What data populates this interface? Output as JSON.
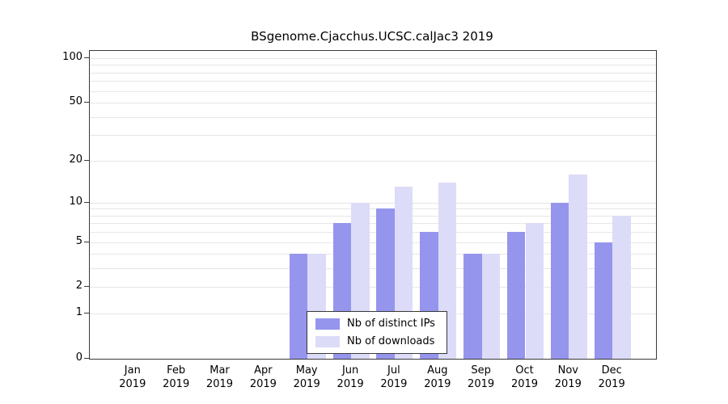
{
  "chart_data": {
    "type": "bar",
    "title": "BSgenome.Cjacchus.UCSC.calJac3 2019",
    "categories": [
      "Jan",
      "Feb",
      "Mar",
      "Apr",
      "May",
      "Jun",
      "Jul",
      "Aug",
      "Sep",
      "Oct",
      "Nov",
      "Dec"
    ],
    "x_year": "2019",
    "series": [
      {
        "name": "Nb of distinct IPs",
        "color": "#9595ee",
        "values": [
          0,
          0,
          0,
          0,
          4,
          7,
          9,
          6,
          4,
          6,
          10,
          5
        ]
      },
      {
        "name": "Nb of downloads",
        "color": "#dcdcf8",
        "values": [
          0,
          0,
          0,
          0,
          4,
          10,
          13,
          14,
          4,
          7,
          16,
          8
        ]
      }
    ],
    "y_axis": {
      "scale": "log1p",
      "ticks": [
        100,
        50,
        20,
        10,
        5,
        2,
        1,
        0
      ],
      "gridlines": [
        1,
        2,
        3,
        4,
        5,
        6,
        7,
        8,
        9,
        10,
        20,
        30,
        40,
        50,
        60,
        70,
        80,
        90,
        100
      ],
      "max": 100
    },
    "legend": [
      "Nb of distinct IPs",
      "Nb of downloads"
    ],
    "legend_position": "bottom-center-inside",
    "grid": true
  }
}
